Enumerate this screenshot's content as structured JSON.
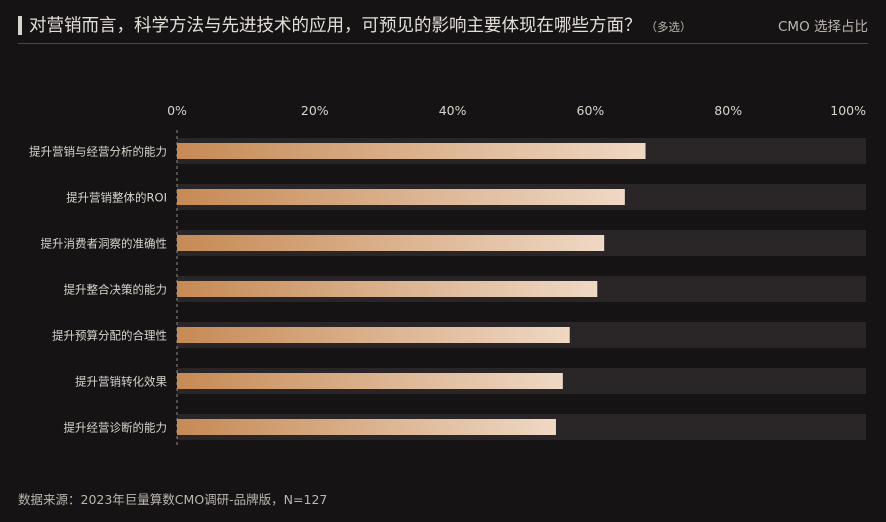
{
  "header": {
    "title": "对营销而言，科学方法与先进技术的应用，可预见的影响主要体现在哪些方面？",
    "note": "（多选）",
    "right_label": "CMO 选择占比"
  },
  "footer": {
    "source": "数据来源：2023年巨量算数CMO调研-品牌版，N=127"
  },
  "colors": {
    "background": "#161314",
    "track": "#2a2627",
    "bar_start": "#c68a55",
    "bar_end": "#efd8c4",
    "text": "#d8d3cd"
  },
  "chart_data": {
    "type": "bar",
    "orientation": "horizontal",
    "categories": [
      "提升营销与经营分析的能力",
      "提升营销整体的ROI",
      "提升消费者洞察的准确性",
      "提升整合决策的能力",
      "提升预算分配的合理性",
      "提升营销转化效果",
      "提升经营诊断的能力"
    ],
    "values": [
      68,
      65,
      62,
      61,
      57,
      56,
      55
    ],
    "value_unit": "%",
    "xlim": [
      0,
      100
    ],
    "x_ticks": [
      "0%",
      "20%",
      "40%",
      "60%",
      "80%",
      "100%"
    ],
    "grid": false
  }
}
